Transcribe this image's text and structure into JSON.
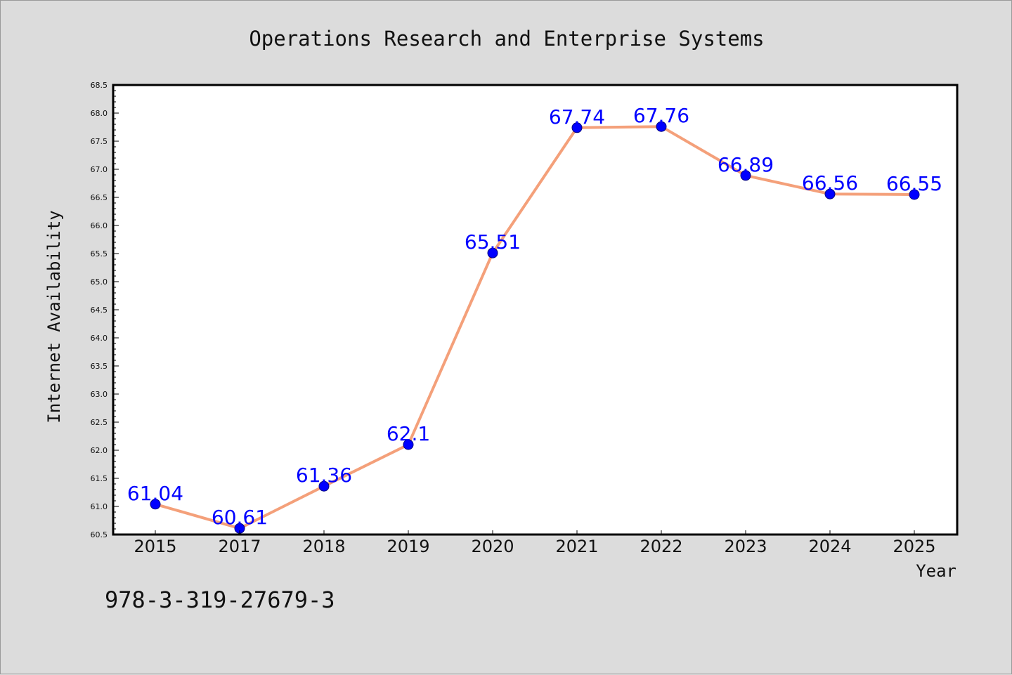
{
  "chart_data": {
    "type": "line",
    "title": "Operations Research and Enterprise Systems",
    "xlabel": "Year",
    "ylabel": "Internet Availability",
    "categories": [
      "2015",
      "2017",
      "2018",
      "2019",
      "2020",
      "2021",
      "2022",
      "2023",
      "2024",
      "2025"
    ],
    "series": [
      {
        "values": [
          61.04,
          60.61,
          61.36,
          62.1,
          65.51,
          67.74,
          67.76,
          66.89,
          66.56,
          66.55
        ]
      }
    ],
    "data_labels": [
      "61.04",
      "60.61",
      "61.36",
      "62.1",
      "65.51",
      "67.74",
      "67.76",
      "66.89",
      "66.56",
      "66.55"
    ],
    "ylim": [
      60.5,
      68.5
    ],
    "y_ticks": [
      "60.5",
      "61.0",
      "61.5",
      "62.0",
      "62.5",
      "63.0",
      "63.5",
      "64.0",
      "64.5",
      "65.0",
      "65.5",
      "66.0",
      "66.5",
      "67.0",
      "67.5",
      "68.0",
      "68.5"
    ],
    "grid": false,
    "legend": "none",
    "annotation": "978-3-319-27679-3",
    "colors": {
      "line": "#f4a07a",
      "marker": "#0000ff",
      "marker_edge": "#000080",
      "label": "#0000ff",
      "plot_bg": "#ffffff",
      "figure_bg": "#dcdcdc"
    }
  }
}
